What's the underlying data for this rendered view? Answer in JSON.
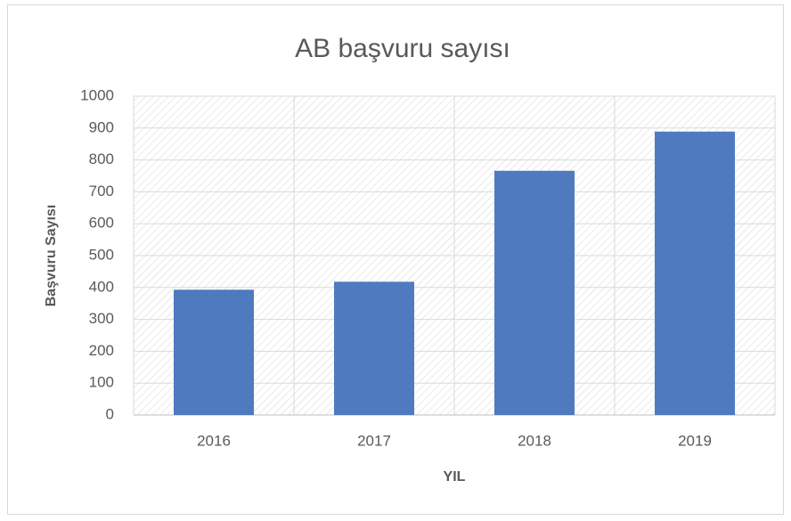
{
  "chart_data": {
    "type": "bar",
    "title": "AB başvuru sayısı",
    "x_label": "YIL",
    "y_label": "Başvuru Sayısı",
    "categories": [
      "2016",
      "2017",
      "2018",
      "2019"
    ],
    "values": [
      393,
      418,
      766,
      889
    ],
    "color": "#4f7abf",
    "ylim": [
      0,
      1000
    ],
    "yticks": [
      0,
      100,
      200,
      300,
      400,
      500,
      600,
      700,
      800,
      900,
      1000
    ],
    "grid": true
  }
}
